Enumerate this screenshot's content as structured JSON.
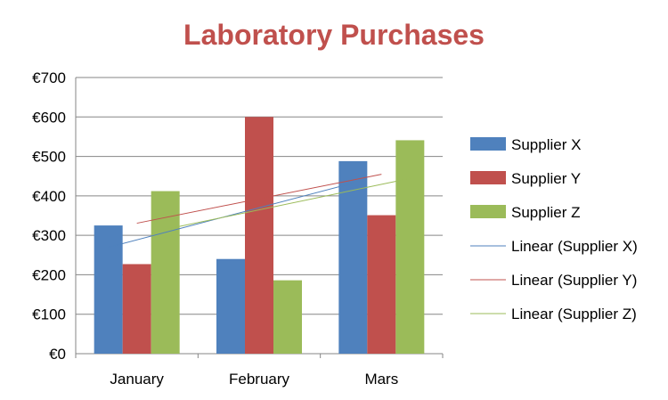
{
  "chart_data": {
    "type": "bar",
    "title": "Laboratory Purchases",
    "title_color": "#C0504D",
    "categories": [
      "January",
      "February",
      "Mars"
    ],
    "ylim": [
      0,
      700
    ],
    "yticks": [
      "€0",
      "€100",
      "€200",
      "€300",
      "€400",
      "€500",
      "€600",
      "€700"
    ],
    "ytick_values": [
      0,
      100,
      200,
      300,
      400,
      500,
      600,
      700
    ],
    "grid": true,
    "legend_position": "right",
    "series": [
      {
        "name": "Supplier X",
        "values": [
          325,
          240,
          488
        ],
        "color": "#4F81BD"
      },
      {
        "name": "Supplier Y",
        "values": [
          227,
          600,
          351
        ],
        "color": "#C0504D"
      },
      {
        "name": "Supplier Z",
        "values": [
          412,
          186,
          541
        ],
        "color": "#9BBB59"
      }
    ],
    "trendlines": [
      {
        "name": "Linear (Supplier X)",
        "type": "linear",
        "series": "Supplier X",
        "color": "#4F81BD"
      },
      {
        "name": "Linear (Supplier Y)",
        "type": "linear",
        "series": "Supplier Y",
        "color": "#C0504D"
      },
      {
        "name": "Linear (Supplier Z)",
        "type": "linear",
        "series": "Supplier Z",
        "color": "#9BBB59"
      }
    ]
  }
}
